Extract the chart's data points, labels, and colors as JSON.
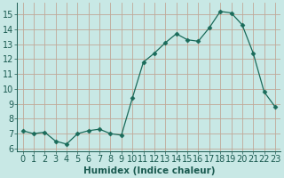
{
  "x": [
    0,
    1,
    2,
    3,
    4,
    5,
    6,
    7,
    8,
    9,
    10,
    11,
    12,
    13,
    14,
    15,
    16,
    17,
    18,
    19,
    20,
    21,
    22,
    23
  ],
  "y": [
    7.2,
    7.0,
    7.1,
    6.5,
    6.3,
    7.0,
    7.2,
    7.3,
    7.0,
    6.9,
    9.4,
    11.8,
    12.4,
    13.1,
    13.7,
    13.3,
    13.2,
    14.1,
    15.2,
    15.1,
    14.3,
    12.4,
    9.8,
    8.8
  ],
  "line_color": "#1a6b5a",
  "marker": "D",
  "marker_size": 2.5,
  "bg_color": "#c8e8e5",
  "grid_color_major": "#c0a898",
  "xlabel": "Humidex (Indice chaleur)",
  "ylabel_ticks": [
    6,
    7,
    8,
    9,
    10,
    11,
    12,
    13,
    14,
    15
  ],
  "xlim": [
    -0.5,
    23.5
  ],
  "ylim": [
    5.8,
    15.8
  ],
  "xlabel_fontsize": 7.5,
  "tick_fontsize": 7
}
